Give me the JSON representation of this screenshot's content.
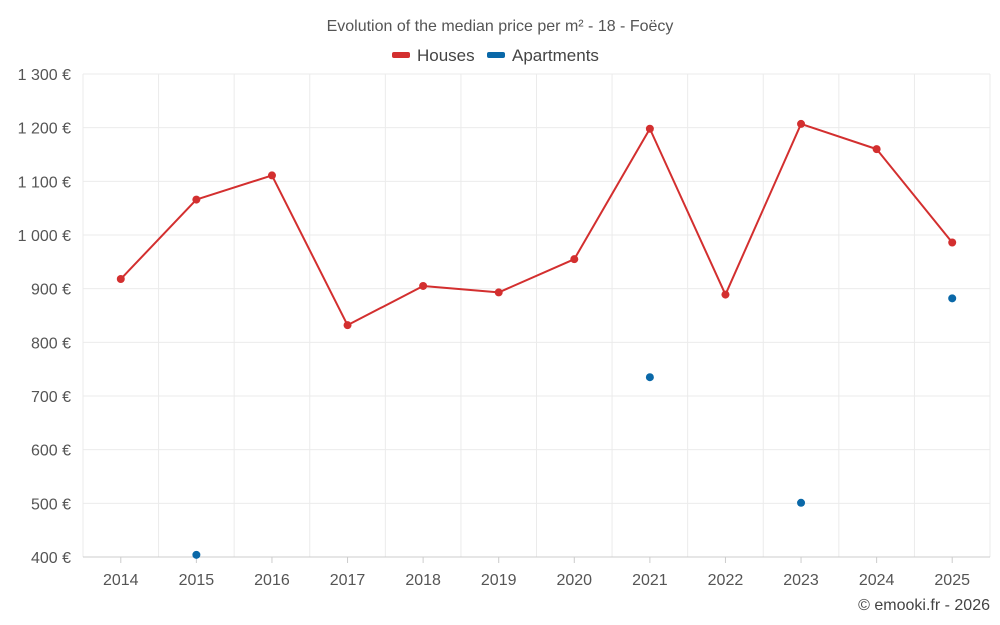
{
  "chart_data": {
    "type": "line",
    "title": "Evolution of the median price per m² - 18 - Foëcy",
    "categories": [
      "2014",
      "2015",
      "2016",
      "2017",
      "2018",
      "2019",
      "2020",
      "2021",
      "2022",
      "2023",
      "2024",
      "2025"
    ],
    "ylim": [
      400,
      1300
    ],
    "yticks": [
      400,
      500,
      600,
      700,
      800,
      900,
      1000,
      1100,
      1200,
      1300
    ],
    "ytick_labels": [
      "400 €",
      "500 €",
      "600 €",
      "700 €",
      "800 €",
      "900 €",
      "1 000 €",
      "1 100 €",
      "1 200 €",
      "1 300 €"
    ],
    "grid": true,
    "legend_position": "top-center",
    "series": [
      {
        "name": "Houses",
        "color": "#d32f2f",
        "style": "line-markers",
        "values": [
          918,
          1066,
          1111,
          832,
          905,
          893,
          955,
          1198,
          889,
          1207,
          1160,
          986
        ]
      },
      {
        "name": "Apartments",
        "color": "#0a68a8",
        "style": "markers",
        "values": [
          null,
          404,
          null,
          null,
          null,
          null,
          null,
          735,
          null,
          501,
          null,
          882
        ]
      }
    ],
    "credit": "© emooki.fr - 2026"
  }
}
